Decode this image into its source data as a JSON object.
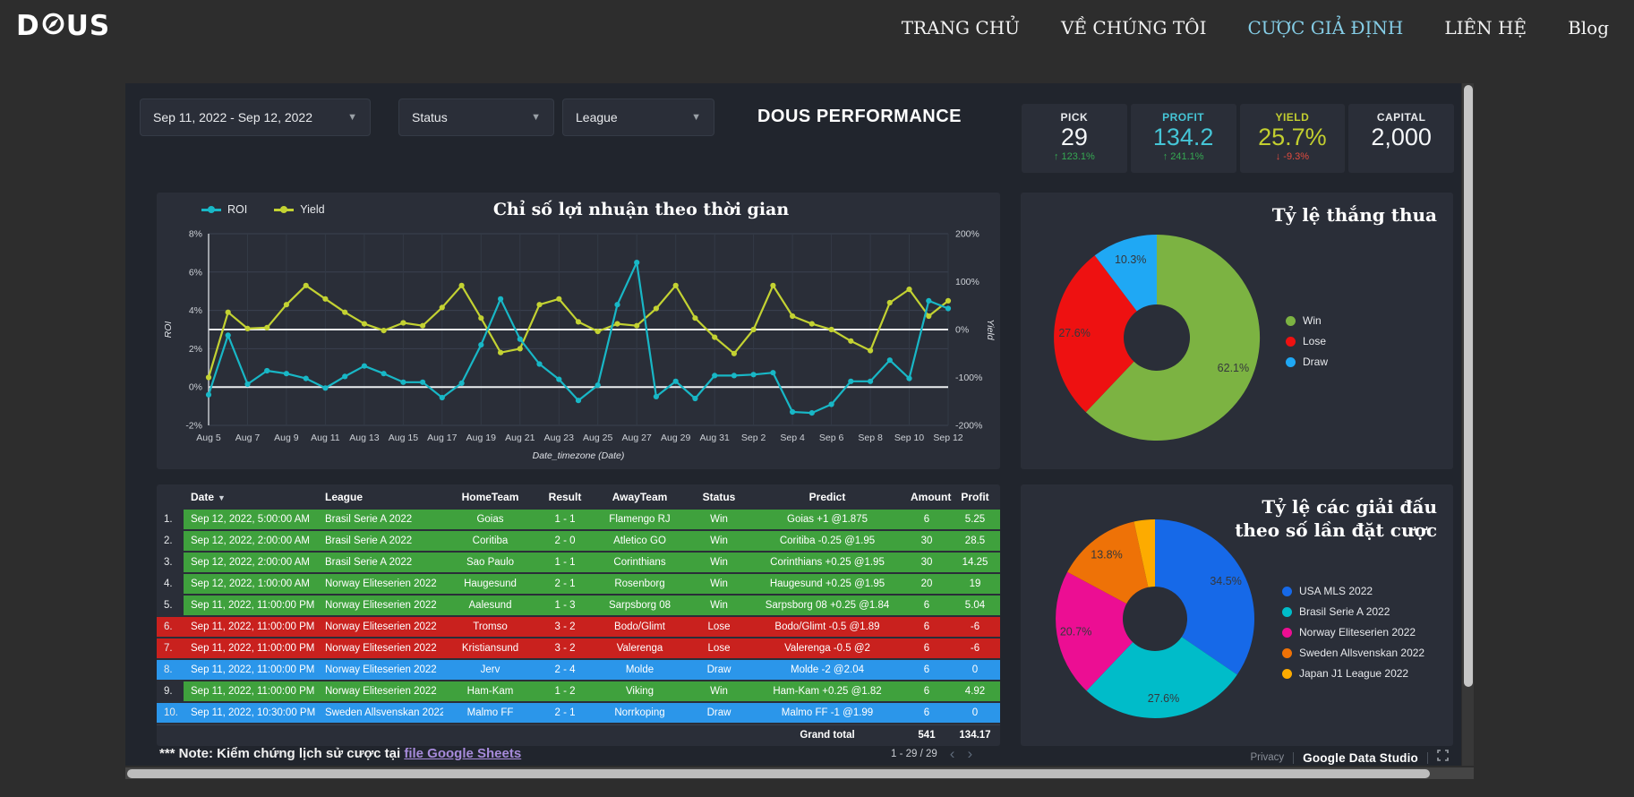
{
  "navbar": {
    "logo_left": "D",
    "logo_right": "US",
    "links": [
      {
        "label": "TRANG CHỦ"
      },
      {
        "label": "VỀ CHÚNG TÔI"
      },
      {
        "label": "CƯỢC GIẢ ĐỊNH"
      },
      {
        "label": "LIÊN HỆ"
      },
      {
        "label": "Blog"
      }
    ]
  },
  "filters": {
    "date_range": "Sep 11, 2022 - Sep 12, 2022",
    "status_label": "Status",
    "league_label": "League"
  },
  "header": {
    "title": "DOUS PERFORMANCE"
  },
  "kpis": [
    {
      "label": "PICK",
      "value": "29",
      "arrow": "↑",
      "delta": "123.1%",
      "trend": "up"
    },
    {
      "label": "PROFIT",
      "value": "134.2",
      "arrow": "↑",
      "delta": "241.1%",
      "trend": "up"
    },
    {
      "label": "YIELD",
      "value": "25.7%",
      "arrow": "↓",
      "delta": "-9.3%",
      "trend": "down"
    },
    {
      "label": "CAPITAL",
      "value": "2,000"
    }
  ],
  "chart_data": [
    {
      "type": "line",
      "title": "Chỉ số lợi nhuận theo thời gian",
      "xlabel": "Date_timezone (Date)",
      "x_start": "Aug 5",
      "x_end": "Sep 12",
      "x_interval": "daily",
      "x_ticks": [
        "Aug 5",
        "Aug 7",
        "Aug 9",
        "Aug 11",
        "Aug 13",
        "Aug 15",
        "Aug 17",
        "Aug 19",
        "Aug 21",
        "Aug 23",
        "Aug 25",
        "Aug 27",
        "Aug 29",
        "Aug 31",
        "Sep 2",
        "Sep 4",
        "Sep 6",
        "Sep 8",
        "Sep 10",
        "Sep 12"
      ],
      "left_axis": {
        "label": "ROI",
        "min": -2,
        "max": 8,
        "ticks": [
          8,
          6,
          4,
          2,
          0,
          -2
        ],
        "unit": "%"
      },
      "right_axis": {
        "label": "Yield",
        "min": -200,
        "max": 200,
        "ticks": [
          200,
          100,
          0,
          -100,
          -200
        ],
        "unit": "%"
      },
      "grid": true,
      "legend_position": "top-left",
      "series": [
        {
          "name": "ROI",
          "axis": "left",
          "color": "#18b7c6",
          "values": [
            -0.4,
            2.7,
            0.15,
            0.85,
            0.7,
            0.45,
            -0.05,
            0.55,
            1.1,
            0.7,
            0.25,
            0.25,
            -0.55,
            0.2,
            2.2,
            4.6,
            2.5,
            1.2,
            0.4,
            -0.7,
            0.1,
            4.3,
            6.5,
            -0.5,
            0.3,
            -0.6,
            0.6,
            0.6,
            0.65,
            0.75,
            -1.3,
            -1.35,
            -0.9,
            0.3,
            0.3,
            1.4,
            0.45,
            4.5,
            4.1
          ]
        },
        {
          "name": "Yield",
          "axis": "right",
          "color": "#c3d232",
          "values": [
            -100,
            36,
            2,
            4,
            52,
            92,
            64,
            36,
            12,
            -2,
            14,
            8,
            46,
            92,
            24,
            -48,
            -40,
            52,
            64,
            16,
            -4,
            12,
            8,
            44,
            92,
            24,
            -16,
            -50,
            0,
            92,
            28,
            12,
            0,
            -24,
            -44,
            56,
            84,
            28,
            60
          ]
        }
      ]
    },
    {
      "type": "pie",
      "title": "Tỷ lệ thắng thua",
      "labels": [
        "Win",
        "Lose",
        "Draw"
      ],
      "values": [
        62.1,
        27.6,
        10.3
      ],
      "colors": [
        "#7cb342",
        "#ee1111",
        "#1fa8f4"
      ],
      "donut_hole": 0.32,
      "legend_position": "right"
    },
    {
      "type": "pie",
      "title": "Tỷ lệ các giải đấu theo số lần đặt cược",
      "labels": [
        "USA MLS 2022",
        "Brasil Serie A 2022",
        "Norway Eliteserien 2022",
        "Sweden Allsvenskan 2022",
        "Japan J1 League 2022"
      ],
      "values": [
        34.5,
        27.6,
        20.7,
        13.8,
        3.4
      ],
      "colors": [
        "#1669e8",
        "#00bcc9",
        "#ec0e93",
        "#ee7207",
        "#fdab00"
      ],
      "donut_hole": 0.32,
      "legend_position": "right"
    }
  ],
  "table": {
    "columns": [
      "",
      "Date",
      "League",
      "HomeTeam",
      "Result",
      "AwayTeam",
      "Status",
      "Predict",
      "Amount",
      "Profit"
    ],
    "sort_column": "Date",
    "rows": [
      {
        "cells": [
          "Sep 12, 2022, 5:00:00 AM",
          "Brasil Serie A 2022",
          "Goias",
          "1 - 1",
          "Flamengo RJ",
          "Win",
          "Goias +1 @1.875",
          "6",
          "5.25"
        ],
        "result": "win"
      },
      {
        "cells": [
          "Sep 12, 2022, 2:00:00 AM",
          "Brasil Serie A 2022",
          "Coritiba",
          "2 - 0",
          "Atletico GO",
          "Win",
          "Coritiba -0.25 @1.95",
          "30",
          "28.5"
        ],
        "result": "win"
      },
      {
        "cells": [
          "Sep 12, 2022, 2:00:00 AM",
          "Brasil Serie A 2022",
          "Sao Paulo",
          "1 - 1",
          "Corinthians",
          "Win",
          "Corinthians +0.25 @1.95",
          "30",
          "14.25"
        ],
        "result": "win"
      },
      {
        "cells": [
          "Sep 12, 2022, 1:00:00 AM",
          "Norway Eliteserien 2022",
          "Haugesund",
          "2 - 1",
          "Rosenborg",
          "Win",
          "Haugesund +0.25 @1.95",
          "20",
          "19"
        ],
        "result": "win"
      },
      {
        "cells": [
          "Sep 11, 2022, 11:00:00 PM",
          "Norway Eliteserien 2022",
          "Aalesund",
          "1 - 3",
          "Sarpsborg 08",
          "Win",
          "Sarpsborg 08 +0.25 @1.84",
          "6",
          "5.04"
        ],
        "result": "win"
      },
      {
        "cells": [
          "Sep 11, 2022, 11:00:00 PM",
          "Norway Eliteserien 2022",
          "Tromso",
          "3 - 2",
          "Bodo/Glimt",
          "Lose",
          "Bodo/Glimt -0.5 @1.89",
          "6",
          "-6"
        ],
        "result": "lose"
      },
      {
        "cells": [
          "Sep 11, 2022, 11:00:00 PM",
          "Norway Eliteserien 2022",
          "Kristiansund",
          "3 - 2",
          "Valerenga",
          "Lose",
          "Valerenga -0.5 @2",
          "6",
          "-6"
        ],
        "result": "lose"
      },
      {
        "cells": [
          "Sep 11, 2022, 11:00:00 PM",
          "Norway Eliteserien 2022",
          "Jerv",
          "2 - 4",
          "Molde",
          "Draw",
          "Molde -2 @2.04",
          "6",
          "0"
        ],
        "result": "draw"
      },
      {
        "cells": [
          "Sep 11, 2022, 11:00:00 PM",
          "Norway Eliteserien 2022",
          "Ham-Kam",
          "1 - 2",
          "Viking",
          "Win",
          "Ham-Kam +0.25 @1.82",
          "6",
          "4.92"
        ],
        "result": "win"
      },
      {
        "cells": [
          "Sep 11, 2022, 10:30:00 PM",
          "Sweden Allsvenskan 2022",
          "Malmo FF",
          "2 - 1",
          "Norrkoping",
          "Draw",
          "Malmo FF -1 @1.99",
          "6",
          "0"
        ],
        "result": "draw"
      }
    ],
    "grand_total": {
      "label": "Grand total",
      "amount": "541",
      "profit": "134.17"
    }
  },
  "note": {
    "prefix": "*** Note: Kiểm chứng lịch sử cược tại",
    "link_text": "file Google Sheets"
  },
  "pagination": {
    "label": "1 - 29 / 29"
  },
  "footer": {
    "privacy": "Privacy",
    "brand": "Google Data Studio"
  }
}
